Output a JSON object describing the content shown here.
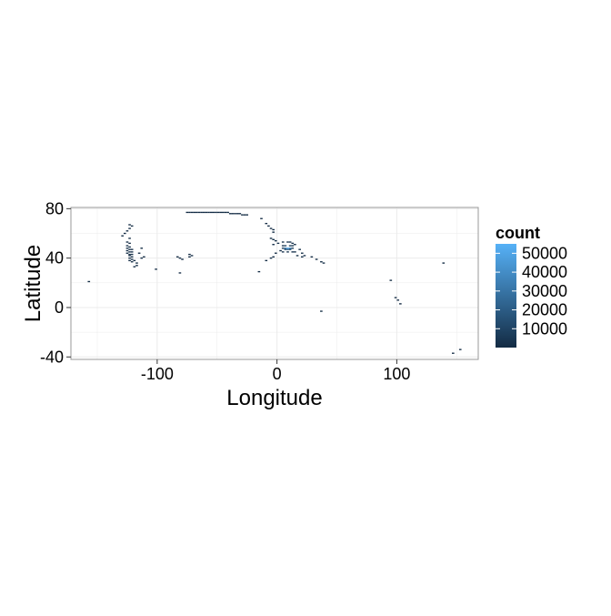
{
  "chart_data": {
    "type": "heatmap",
    "xlabel": "Longitude",
    "ylabel": "Latitude",
    "xlim": [
      -172,
      168
    ],
    "ylim": [
      -42,
      81
    ],
    "x_ticks": [
      -100,
      0,
      100
    ],
    "y_ticks": [
      -40,
      0,
      40,
      80
    ],
    "x_tick_labels": [
      "-100",
      "0",
      "100"
    ],
    "y_tick_labels": [
      "-40",
      "0",
      "40",
      "80"
    ],
    "grid": true,
    "bin_width": 2,
    "bin_height": 1,
    "legend": {
      "title": "count",
      "position": "right",
      "breaks": [
        10000,
        20000,
        30000,
        40000,
        50000
      ],
      "labels": [
        "10000",
        "20000",
        "30000",
        "40000",
        "50000"
      ],
      "range": [
        0,
        55000
      ]
    },
    "colors": {
      "low": "#132B43",
      "high": "#56B1F7",
      "panel_border": "#999999",
      "grid": "#ebebeb"
    },
    "points": [
      {
        "x": -75,
        "y": 77,
        "count": 400
      },
      {
        "x": -73,
        "y": 77,
        "count": 400
      },
      {
        "x": -71,
        "y": 77,
        "count": 400
      },
      {
        "x": -69,
        "y": 77,
        "count": 400
      },
      {
        "x": -67,
        "y": 77,
        "count": 400
      },
      {
        "x": -65,
        "y": 77,
        "count": 400
      },
      {
        "x": -63,
        "y": 77,
        "count": 400
      },
      {
        "x": -61,
        "y": 77,
        "count": 400
      },
      {
        "x": -59,
        "y": 77,
        "count": 400
      },
      {
        "x": -57,
        "y": 77,
        "count": 400
      },
      {
        "x": -55,
        "y": 77,
        "count": 400
      },
      {
        "x": -53,
        "y": 77,
        "count": 400
      },
      {
        "x": -51,
        "y": 77,
        "count": 400
      },
      {
        "x": -49,
        "y": 77,
        "count": 400
      },
      {
        "x": -47,
        "y": 77,
        "count": 400
      },
      {
        "x": -45,
        "y": 77,
        "count": 400
      },
      {
        "x": -43,
        "y": 77,
        "count": 400
      },
      {
        "x": -41,
        "y": 77,
        "count": 400
      },
      {
        "x": -39,
        "y": 76,
        "count": 500
      },
      {
        "x": -37,
        "y": 76,
        "count": 500
      },
      {
        "x": -35,
        "y": 76,
        "count": 500
      },
      {
        "x": -33,
        "y": 76,
        "count": 500
      },
      {
        "x": -31,
        "y": 76,
        "count": 500
      },
      {
        "x": -29,
        "y": 75,
        "count": 400
      },
      {
        "x": -27,
        "y": 75,
        "count": 400
      },
      {
        "x": -25,
        "y": 75,
        "count": 400
      },
      {
        "x": -13,
        "y": 72,
        "count": 500
      },
      {
        "x": -9,
        "y": 68,
        "count": 600
      },
      {
        "x": -7,
        "y": 66,
        "count": 600
      },
      {
        "x": -5,
        "y": 64,
        "count": 700
      },
      {
        "x": -3,
        "y": 63,
        "count": 800
      },
      {
        "x": -3,
        "y": 61,
        "count": 700
      },
      {
        "x": -5,
        "y": 56,
        "count": 900
      },
      {
        "x": -3,
        "y": 55,
        "count": 1200
      },
      {
        "x": -1,
        "y": 54,
        "count": 1500
      },
      {
        "x": 1,
        "y": 52,
        "count": 1800
      },
      {
        "x": -3,
        "y": 51,
        "count": 1400
      },
      {
        "x": 5,
        "y": 53,
        "count": 2500
      },
      {
        "x": 9,
        "y": 53,
        "count": 3000
      },
      {
        "x": 11,
        "y": 53,
        "count": 2800
      },
      {
        "x": 13,
        "y": 52,
        "count": 2500
      },
      {
        "x": 15,
        "y": 51,
        "count": 2200
      },
      {
        "x": 5,
        "y": 50,
        "count": 3500
      },
      {
        "x": 7,
        "y": 50,
        "count": 9000
      },
      {
        "x": 11,
        "y": 50,
        "count": 8000
      },
      {
        "x": 13,
        "y": 50,
        "count": 4000
      },
      {
        "x": 5,
        "y": 48,
        "count": 6000
      },
      {
        "x": 7,
        "y": 48,
        "count": 30000
      },
      {
        "x": 9,
        "y": 48,
        "count": 52000
      },
      {
        "x": 11,
        "y": 48,
        "count": 38000
      },
      {
        "x": 13,
        "y": 48,
        "count": 7000
      },
      {
        "x": 7,
        "y": 47,
        "count": 14000
      },
      {
        "x": 9,
        "y": 47,
        "count": 20000
      },
      {
        "x": 11,
        "y": 47,
        "count": 9000
      },
      {
        "x": 3,
        "y": 46,
        "count": 2500
      },
      {
        "x": 5,
        "y": 45,
        "count": 3000
      },
      {
        "x": 9,
        "y": 45,
        "count": 4000
      },
      {
        "x": 13,
        "y": 45,
        "count": 3000
      },
      {
        "x": 15,
        "y": 45,
        "count": 2000
      },
      {
        "x": 19,
        "y": 47,
        "count": 1800
      },
      {
        "x": 21,
        "y": 44,
        "count": 1500
      },
      {
        "x": 17,
        "y": 42,
        "count": 1200
      },
      {
        "x": 21,
        "y": 41,
        "count": 1100
      },
      {
        "x": 23,
        "y": 42,
        "count": 1000
      },
      {
        "x": 29,
        "y": 41,
        "count": 1000
      },
      {
        "x": 33,
        "y": 39,
        "count": 900
      },
      {
        "x": 37,
        "y": 37,
        "count": 900
      },
      {
        "x": 39,
        "y": 36,
        "count": 800
      },
      {
        "x": -1,
        "y": 44,
        "count": 1000
      },
      {
        "x": -3,
        "y": 41,
        "count": 900
      },
      {
        "x": -5,
        "y": 40,
        "count": 800
      },
      {
        "x": -9,
        "y": 38,
        "count": 800
      },
      {
        "x": -15,
        "y": 29,
        "count": 600
      },
      {
        "x": -123,
        "y": 67,
        "count": 700
      },
      {
        "x": -121,
        "y": 66,
        "count": 700
      },
      {
        "x": -123,
        "y": 64,
        "count": 800
      },
      {
        "x": -125,
        "y": 62,
        "count": 800
      },
      {
        "x": -127,
        "y": 60,
        "count": 800
      },
      {
        "x": -129,
        "y": 58,
        "count": 900
      },
      {
        "x": -123,
        "y": 56,
        "count": 900
      },
      {
        "x": -125,
        "y": 53,
        "count": 1000
      },
      {
        "x": -123,
        "y": 52,
        "count": 1000
      },
      {
        "x": -125,
        "y": 50,
        "count": 1100
      },
      {
        "x": -123,
        "y": 49,
        "count": 1200
      },
      {
        "x": -125,
        "y": 48,
        "count": 1100
      },
      {
        "x": -123,
        "y": 47,
        "count": 1500
      },
      {
        "x": -121,
        "y": 47,
        "count": 1200
      },
      {
        "x": -125,
        "y": 46,
        "count": 1300
      },
      {
        "x": -123,
        "y": 45,
        "count": 1800
      },
      {
        "x": -121,
        "y": 45,
        "count": 1400
      },
      {
        "x": -125,
        "y": 44,
        "count": 1200
      },
      {
        "x": -123,
        "y": 43,
        "count": 1600
      },
      {
        "x": -121,
        "y": 43,
        "count": 1300
      },
      {
        "x": -123,
        "y": 42,
        "count": 1500
      },
      {
        "x": -121,
        "y": 41,
        "count": 1200
      },
      {
        "x": -123,
        "y": 40,
        "count": 1400
      },
      {
        "x": -121,
        "y": 39,
        "count": 1100
      },
      {
        "x": -123,
        "y": 38,
        "count": 1300
      },
      {
        "x": -119,
        "y": 38,
        "count": 1000
      },
      {
        "x": -121,
        "y": 37,
        "count": 1100
      },
      {
        "x": -117,
        "y": 36,
        "count": 900
      },
      {
        "x": -117,
        "y": 34,
        "count": 1000
      },
      {
        "x": -119,
        "y": 33,
        "count": 900
      },
      {
        "x": -113,
        "y": 48,
        "count": 700
      },
      {
        "x": -115,
        "y": 44,
        "count": 700
      },
      {
        "x": -111,
        "y": 41,
        "count": 600
      },
      {
        "x": -113,
        "y": 40,
        "count": 600
      },
      {
        "x": -101,
        "y": 31,
        "count": 500
      },
      {
        "x": -83,
        "y": 41,
        "count": 500
      },
      {
        "x": -81,
        "y": 40,
        "count": 500
      },
      {
        "x": -79,
        "y": 39,
        "count": 500
      },
      {
        "x": -73,
        "y": 43,
        "count": 600
      },
      {
        "x": -71,
        "y": 42,
        "count": 600
      },
      {
        "x": -73,
        "y": 41,
        "count": 600
      },
      {
        "x": -81,
        "y": 28,
        "count": 500
      },
      {
        "x": -157,
        "y": 21,
        "count": 400
      },
      {
        "x": 37,
        "y": -3,
        "count": 400
      },
      {
        "x": 95,
        "y": 22,
        "count": 400
      },
      {
        "x": 99,
        "y": 8,
        "count": 400
      },
      {
        "x": 101,
        "y": 6,
        "count": 400
      },
      {
        "x": 103,
        "y": 3,
        "count": 400
      },
      {
        "x": 139,
        "y": 36,
        "count": 400
      },
      {
        "x": 147,
        "y": -37,
        "count": 400
      },
      {
        "x": 153,
        "y": -34,
        "count": 400
      }
    ]
  }
}
